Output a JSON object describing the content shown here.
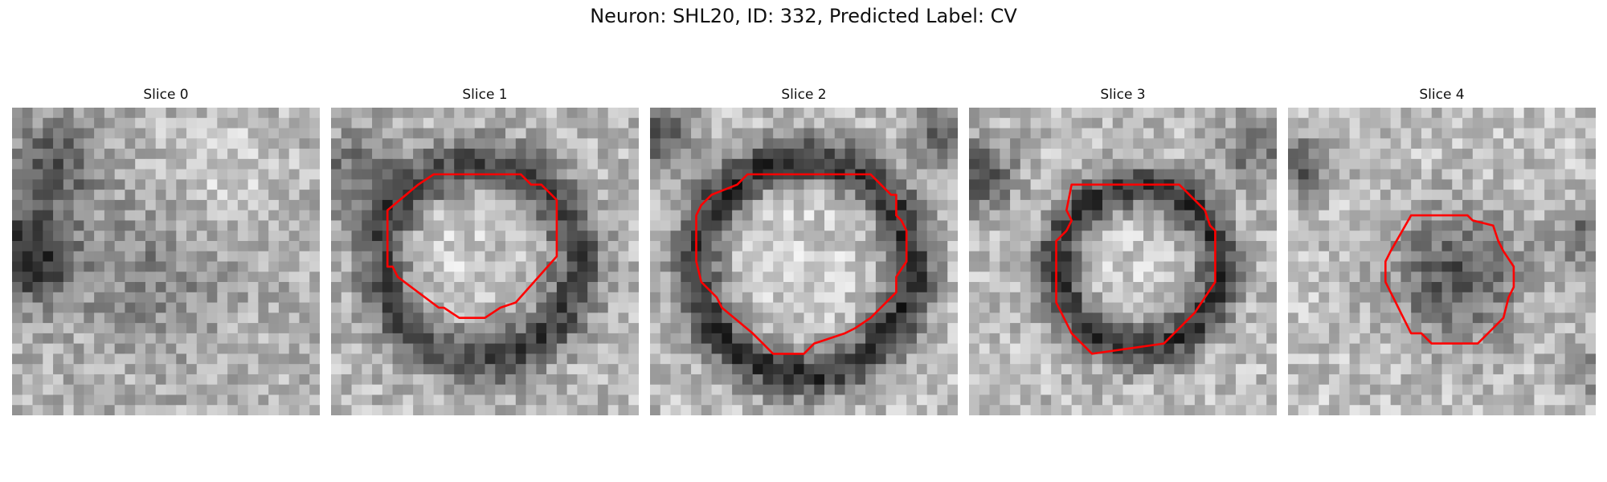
{
  "figure": {
    "title": "Neuron: SHL20, ID: 332, Predicted Label: CV",
    "outline_color": "#ff0000",
    "colormap": "gray"
  },
  "slices": [
    {
      "title": "Slice 0",
      "has_outline": false
    },
    {
      "title": "Slice 1",
      "has_outline": true
    },
    {
      "title": "Slice 2",
      "has_outline": true
    },
    {
      "title": "Slice 3",
      "has_outline": true
    },
    {
      "title": "Slice 4",
      "has_outline": true
    }
  ]
}
